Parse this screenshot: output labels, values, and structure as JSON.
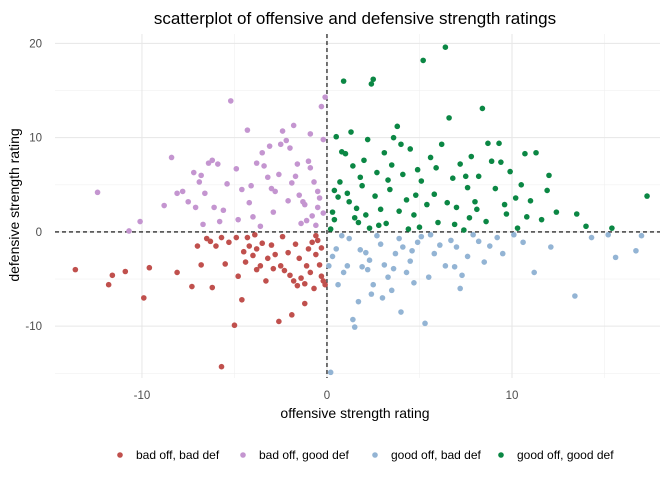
{
  "chart_data": {
    "type": "scatter",
    "title": "scatterplot of offensive and defensive strength ratings",
    "xlabel": "offensive strength rating",
    "ylabel": "defensive strength rating",
    "xlim": [
      -14.7,
      18
    ],
    "ylim": [
      -15.5,
      21
    ],
    "xticks": [
      -10,
      0,
      10
    ],
    "yticks": [
      -10,
      0,
      10,
      20
    ],
    "grid": true,
    "reference_lines": {
      "x": 0,
      "y": 0,
      "style": "dashed"
    },
    "legend_position": "bottom",
    "series": [
      {
        "name": "bad off, bad def",
        "color": "#c0504d",
        "points": [
          [
            -13.6,
            -4.0
          ],
          [
            -11.8,
            -5.6
          ],
          [
            -11.6,
            -4.6
          ],
          [
            -10.9,
            -4.2
          ],
          [
            -9.9,
            -7.0
          ],
          [
            -9.6,
            -3.8
          ],
          [
            -8.1,
            -4.3
          ],
          [
            -7.3,
            -5.8
          ],
          [
            -6.8,
            -3.5
          ],
          [
            -6.2,
            -5.9
          ],
          [
            -7.0,
            -1.5
          ],
          [
            -6.5,
            -0.7
          ],
          [
            -6.3,
            -1.0
          ],
          [
            -6.0,
            -1.5
          ],
          [
            -5.7,
            -0.6
          ],
          [
            -5.7,
            -14.3
          ],
          [
            -5.0,
            -9.9
          ],
          [
            -4.6,
            -7.2
          ],
          [
            -4.9,
            -0.6
          ],
          [
            -5.3,
            -1.1
          ],
          [
            -4.3,
            -0.6
          ],
          [
            -4.2,
            -1.5
          ],
          [
            -4.5,
            -2.1
          ],
          [
            -4.0,
            -2.5
          ],
          [
            -3.8,
            -1.8
          ],
          [
            -3.5,
            -1.2
          ],
          [
            -3.2,
            -2.8
          ],
          [
            -3.0,
            -1.4
          ],
          [
            -2.8,
            -2.4
          ],
          [
            -2.5,
            -3.6
          ],
          [
            -2.3,
            -4.1
          ],
          [
            -2.0,
            -4.6
          ],
          [
            -1.8,
            -5.2
          ],
          [
            -1.6,
            -5.7
          ],
          [
            -1.4,
            -4.9
          ],
          [
            -1.2,
            -5.5
          ],
          [
            -1.0,
            -1.8
          ],
          [
            -0.8,
            -1.1
          ],
          [
            -0.6,
            -2.4
          ],
          [
            -0.4,
            -3.5
          ],
          [
            -0.3,
            -4.7
          ],
          [
            -0.2,
            -5.2
          ],
          [
            -0.5,
            -0.9
          ],
          [
            -0.7,
            -6.0
          ],
          [
            -1.2,
            -7.6
          ],
          [
            -1.9,
            -8.8
          ],
          [
            -2.6,
            -9.5
          ],
          [
            -3.8,
            -4.0
          ],
          [
            -4.4,
            -3.2
          ],
          [
            -3.6,
            -3.6
          ],
          [
            -2.9,
            -3.9
          ],
          [
            -3.3,
            -5.2
          ],
          [
            -2.1,
            -2.2
          ],
          [
            -1.5,
            -2.8
          ],
          [
            -1.1,
            -3.6
          ],
          [
            -0.9,
            -4.3
          ],
          [
            -0.1,
            -5.6
          ],
          [
            -0.3,
            -1.7
          ],
          [
            -4.8,
            -4.7
          ],
          [
            -5.5,
            -3.4
          ],
          [
            -2.4,
            -0.5
          ],
          [
            -1.7,
            -1.3
          ],
          [
            -3.9,
            -0.3
          ],
          [
            -0.6,
            -0.4
          ]
        ]
      },
      {
        "name": "bad off, good def",
        "color": "#c495d0",
        "points": [
          [
            -12.4,
            4.2
          ],
          [
            -10.7,
            0.1
          ],
          [
            -10.1,
            1.1
          ],
          [
            -8.8,
            2.8
          ],
          [
            -8.4,
            7.9
          ],
          [
            -8.1,
            4.1
          ],
          [
            -7.8,
            4.3
          ],
          [
            -7.5,
            3.2
          ],
          [
            -7.2,
            6.3
          ],
          [
            -7.1,
            2.6
          ],
          [
            -6.9,
            5.3
          ],
          [
            -6.6,
            4.1
          ],
          [
            -6.4,
            7.3
          ],
          [
            -6.2,
            7.6
          ],
          [
            -5.9,
            7.2
          ],
          [
            -6.1,
            2.6
          ],
          [
            -5.8,
            1.1
          ],
          [
            -5.2,
            13.9
          ],
          [
            -4.9,
            6.7
          ],
          [
            -4.6,
            4.5
          ],
          [
            -4.3,
            10.8
          ],
          [
            -4.2,
            3.1
          ],
          [
            -4.0,
            1.6
          ],
          [
            -3.8,
            7.3
          ],
          [
            -3.5,
            8.4
          ],
          [
            -3.4,
            7.0
          ],
          [
            -3.2,
            5.8
          ],
          [
            -3.0,
            4.6
          ],
          [
            -2.8,
            4.3
          ],
          [
            -2.6,
            6.1
          ],
          [
            -2.4,
            10.7
          ],
          [
            -2.2,
            9.7
          ],
          [
            -2.0,
            8.9
          ],
          [
            -1.9,
            5.2
          ],
          [
            -1.7,
            5.9
          ],
          [
            -1.5,
            3.9
          ],
          [
            -1.3,
            3.2
          ],
          [
            -1.2,
            2.9
          ],
          [
            -1.0,
            7.5
          ],
          [
            -0.9,
            6.8
          ],
          [
            -0.7,
            5.3
          ],
          [
            -0.5,
            4.3
          ],
          [
            -0.4,
            3.6
          ],
          [
            -0.2,
            2.0
          ],
          [
            -0.3,
            13.3
          ],
          [
            -0.1,
            14.3
          ],
          [
            -0.8,
            1.7
          ],
          [
            -1.4,
            0.9
          ],
          [
            -2.9,
            2.1
          ],
          [
            -3.6,
            0.6
          ],
          [
            -4.8,
            1.3
          ],
          [
            -5.4,
            5.1
          ],
          [
            -6.7,
            0.8
          ],
          [
            -2.1,
            3.3
          ],
          [
            -1.1,
            1.2
          ],
          [
            -0.6,
            0.7
          ],
          [
            -3.1,
            9.1
          ],
          [
            -2.5,
            9.3
          ],
          [
            -1.6,
            7.2
          ],
          [
            -4.1,
            4.9
          ],
          [
            -5.6,
            2.3
          ],
          [
            -6.8,
            6.0
          ],
          [
            -0.9,
            10.4
          ],
          [
            -1.8,
            11.3
          ],
          [
            -0.2,
            9.8
          ],
          [
            -0.5,
            2.6
          ]
        ]
      },
      {
        "name": "good off, bad def",
        "color": "#93b4d4",
        "points": [
          [
            0.2,
            -14.9
          ],
          [
            0.1,
            -3.6
          ],
          [
            0.3,
            -2.6
          ],
          [
            0.6,
            -5.6
          ],
          [
            0.9,
            -4.3
          ],
          [
            1.1,
            -3.6
          ],
          [
            1.4,
            -9.3
          ],
          [
            1.5,
            -10.1
          ],
          [
            1.7,
            -7.4
          ],
          [
            1.9,
            -3.7
          ],
          [
            2.1,
            -2.2
          ],
          [
            2.3,
            -3.0
          ],
          [
            2.5,
            -5.6
          ],
          [
            2.7,
            -0.4
          ],
          [
            2.9,
            -1.3
          ],
          [
            3.1,
            -3.5
          ],
          [
            3.3,
            -4.8
          ],
          [
            3.5,
            -6.2
          ],
          [
            3.7,
            -2.3
          ],
          [
            3.9,
            -0.7
          ],
          [
            4.1,
            -1.6
          ],
          [
            4.3,
            -4.3
          ],
          [
            4.5,
            -3.1
          ],
          [
            4.7,
            -5.4
          ],
          [
            4.9,
            -1.1
          ],
          [
            5.1,
            -0.5
          ],
          [
            5.3,
            -9.7
          ],
          [
            5.5,
            -4.8
          ],
          [
            5.8,
            -2.3
          ],
          [
            6.1,
            -1.4
          ],
          [
            6.4,
            -3.6
          ],
          [
            6.7,
            -0.9
          ],
          [
            7.0,
            -1.6
          ],
          [
            7.3,
            -4.6
          ],
          [
            7.6,
            -2.6
          ],
          [
            7.9,
            -0.3
          ],
          [
            8.2,
            -1.0
          ],
          [
            8.5,
            -3.2
          ],
          [
            8.8,
            -1.5
          ],
          [
            9.2,
            -0.6
          ],
          [
            9.5,
            -2.3
          ],
          [
            10.1,
            -0.3
          ],
          [
            10.6,
            -1.1
          ],
          [
            11.2,
            -4.3
          ],
          [
            12.1,
            -1.6
          ],
          [
            13.4,
            -6.8
          ],
          [
            14.3,
            -0.6
          ],
          [
            15.2,
            -0.3
          ],
          [
            15.6,
            -2.7
          ],
          [
            16.7,
            -2.0
          ],
          [
            17.0,
            -0.4
          ],
          [
            1.2,
            -0.7
          ],
          [
            1.8,
            -1.9
          ],
          [
            2.4,
            -6.6
          ],
          [
            3.0,
            -7.0
          ],
          [
            4.0,
            -8.5
          ],
          [
            5.6,
            -0.3
          ],
          [
            6.9,
            -3.7
          ],
          [
            0.5,
            -1.8
          ],
          [
            0.8,
            -0.4
          ],
          [
            2.2,
            -4.0
          ],
          [
            3.6,
            -3.9
          ],
          [
            4.6,
            -2.0
          ],
          [
            7.2,
            -6.0
          ]
        ]
      },
      {
        "name": "good off, good def",
        "color": "#0b8744",
        "points": [
          [
            0.2,
            0.3
          ],
          [
            0.3,
            2.1
          ],
          [
            0.4,
            4.4
          ],
          [
            0.5,
            10.1
          ],
          [
            0.6,
            3.7
          ],
          [
            0.7,
            5.3
          ],
          [
            0.9,
            16.0
          ],
          [
            1.0,
            8.3
          ],
          [
            1.1,
            4.1
          ],
          [
            1.3,
            10.6
          ],
          [
            1.4,
            7.0
          ],
          [
            1.5,
            1.5
          ],
          [
            1.6,
            2.5
          ],
          [
            1.8,
            5.8
          ],
          [
            2.0,
            7.6
          ],
          [
            2.2,
            9.8
          ],
          [
            2.3,
            0.4
          ],
          [
            2.4,
            15.7
          ],
          [
            2.5,
            16.2
          ],
          [
            2.6,
            3.8
          ],
          [
            2.7,
            6.3
          ],
          [
            2.9,
            2.4
          ],
          [
            3.1,
            8.4
          ],
          [
            3.2,
            0.9
          ],
          [
            3.4,
            4.5
          ],
          [
            3.6,
            10.0
          ],
          [
            3.8,
            11.2
          ],
          [
            3.9,
            2.2
          ],
          [
            4.1,
            6.1
          ],
          [
            4.3,
            3.4
          ],
          [
            4.5,
            8.8
          ],
          [
            4.7,
            1.8
          ],
          [
            4.9,
            6.6
          ],
          [
            5.1,
            5.4
          ],
          [
            5.2,
            18.2
          ],
          [
            5.4,
            2.9
          ],
          [
            5.6,
            7.9
          ],
          [
            5.8,
            4.0
          ],
          [
            6.0,
            1.0
          ],
          [
            6.2,
            9.3
          ],
          [
            6.4,
            19.6
          ],
          [
            6.6,
            12.1
          ],
          [
            6.8,
            5.7
          ],
          [
            7.0,
            2.6
          ],
          [
            7.2,
            7.2
          ],
          [
            7.4,
            0.2
          ],
          [
            7.6,
            4.7
          ],
          [
            7.8,
            8.0
          ],
          [
            8.0,
            3.2
          ],
          [
            8.2,
            5.9
          ],
          [
            8.4,
            13.1
          ],
          [
            8.6,
            1.1
          ],
          [
            8.9,
            7.5
          ],
          [
            9.1,
            4.6
          ],
          [
            9.3,
            9.4
          ],
          [
            9.6,
            2.9
          ],
          [
            9.9,
            6.4
          ],
          [
            10.2,
            3.6
          ],
          [
            10.5,
            5.0
          ],
          [
            10.8,
            1.6
          ],
          [
            11.0,
            3.3
          ],
          [
            11.3,
            8.4
          ],
          [
            11.6,
            1.3
          ],
          [
            11.9,
            4.4
          ],
          [
            12.4,
            2.1
          ],
          [
            13.5,
            1.9
          ],
          [
            14.0,
            0.6
          ],
          [
            15.4,
            0.4
          ],
          [
            17.3,
            3.8
          ],
          [
            1.2,
            3.2
          ],
          [
            1.7,
            1.0
          ],
          [
            2.8,
            0.7
          ],
          [
            3.3,
            5.5
          ],
          [
            4.0,
            9.3
          ],
          [
            5.0,
            0.5
          ],
          [
            6.5,
            3.1
          ],
          [
            7.5,
            5.9
          ],
          [
            8.7,
            9.4
          ],
          [
            9.7,
            1.9
          ],
          [
            10.7,
            8.3
          ],
          [
            0.8,
            8.5
          ],
          [
            1.9,
            4.9
          ],
          [
            3.5,
            7.1
          ],
          [
            4.4,
            0.3
          ],
          [
            5.9,
            6.8
          ],
          [
            6.9,
            0.8
          ],
          [
            8.1,
            2.4
          ],
          [
            9.4,
            7.4
          ],
          [
            10.3,
            0.4
          ],
          [
            12.0,
            6.0
          ],
          [
            0.4,
            1.3
          ],
          [
            2.1,
            1.8
          ],
          [
            4.8,
            3.9
          ],
          [
            7.7,
            1.5
          ]
        ]
      }
    ]
  }
}
